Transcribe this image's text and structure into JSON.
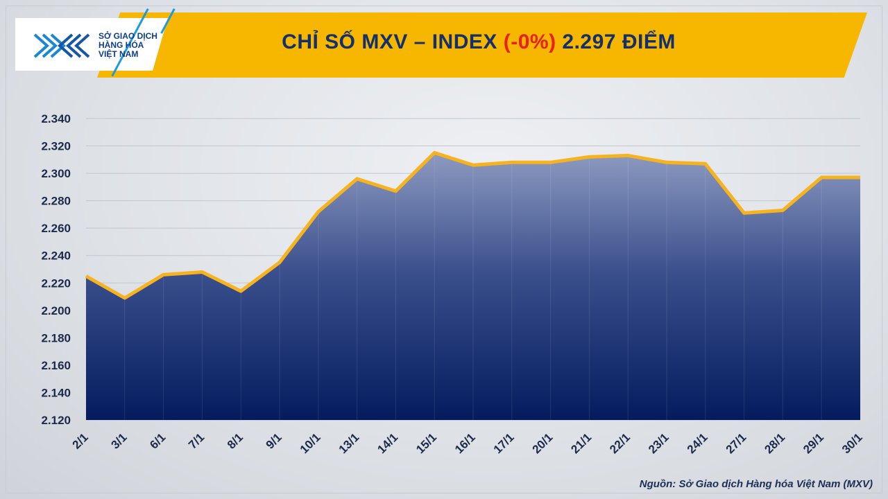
{
  "header": {
    "logo_lines": [
      "SỞ GIAO DỊCH",
      "HÀNG HÓA",
      "VIỆT NAM"
    ],
    "title_prefix": "CHỈ SỐ MXV – INDEX ",
    "title_change": "(-0%)",
    "title_suffix": " 2.297 ĐIỂM"
  },
  "footer": {
    "source": "Nguồn: Sở Giao dịch Hàng hóa Việt Nam (MXV)"
  },
  "colors": {
    "banner": "#f7b600",
    "line": "#f7b31d",
    "area_top": "#8d9ac0",
    "area_bottom": "#041c5e",
    "title": "#13306b",
    "change": "#e8211c"
  },
  "chart_data": {
    "type": "area",
    "title": "CHỈ SỐ MXV – INDEX (-0%) 2.297 ĐIỂM",
    "xlabel": "",
    "ylabel": "",
    "categories": [
      "2/1",
      "3/1",
      "6/1",
      "7/1",
      "8/1",
      "9/1",
      "10/1",
      "13/1",
      "14/1",
      "15/1",
      "16/1",
      "17/1",
      "20/1",
      "21/1",
      "22/1",
      "23/1",
      "24/1",
      "27/1",
      "28/1",
      "29/1",
      "30/1"
    ],
    "values": [
      2225,
      2209,
      2226,
      2228,
      2214,
      2235,
      2272,
      2296,
      2287,
      2315,
      2306,
      2308,
      2308,
      2312,
      2313,
      2308,
      2307,
      2271,
      2273,
      2297,
      2297
    ],
    "ylim": [
      2120,
      2340
    ],
    "yticks": [
      "2.120",
      "2.140",
      "2.160",
      "2.180",
      "2.200",
      "2.220",
      "2.240",
      "2.260",
      "2.280",
      "2.300",
      "2.320",
      "2.340"
    ],
    "grid": true,
    "legend": "none"
  }
}
